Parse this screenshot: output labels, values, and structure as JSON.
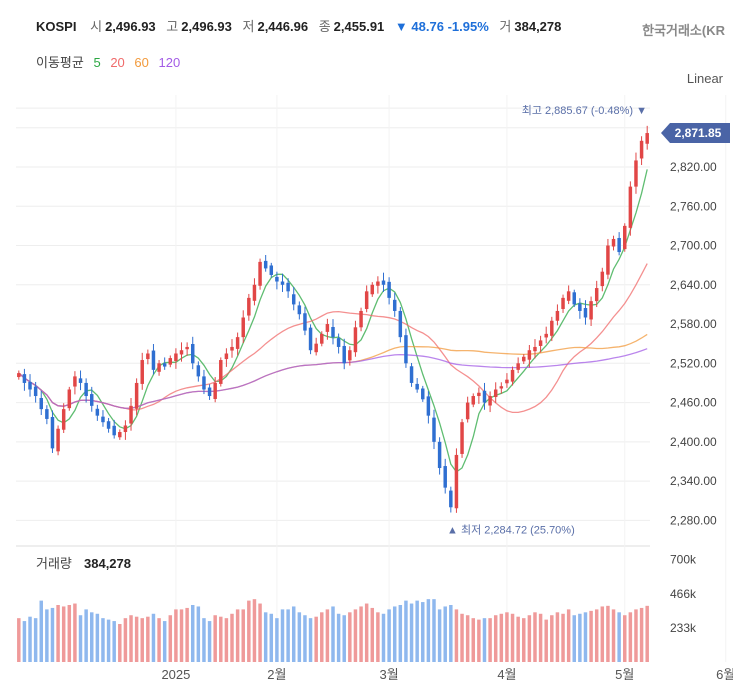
{
  "header": {
    "symbol": "KOSPI",
    "open_label": "시",
    "open_value": "2,496.93",
    "high_label": "고",
    "high_value": "2,496.93",
    "low_label": "저",
    "low_value": "2,446.96",
    "close_label": "종",
    "close_value": "2,455.91",
    "change_arrow": "▼",
    "change_value": "48.76",
    "change_pct": "-1.95%",
    "volume_label": "거",
    "volume_value": "384,278",
    "exchange": "한국거래소(KR",
    "scale_mode": "Linear"
  },
  "moving_average": {
    "label": "이동평균",
    "periods": [
      "5",
      "20",
      "60",
      "120"
    ],
    "colors": [
      "#2aa742",
      "#f06b6b",
      "#f29a3c",
      "#a35ce6"
    ]
  },
  "colors": {
    "up": "#e14646",
    "down": "#2f6fd1",
    "vol_up": "#ef9a9a",
    "vol_down": "#8fb8ee",
    "price_tag": "#4a64a6",
    "grid": "#eeeeee"
  },
  "chart_data": {
    "type": "candlestick",
    "price_axis": {
      "range": [
        2250,
        2930
      ],
      "ticks": [
        "2,280.00",
        "2,340.00",
        "2,400.00",
        "2,460.00",
        "2,520.00",
        "2,580.00",
        "2,640.00",
        "2,700.00",
        "2,760.00",
        "2,820.00"
      ],
      "tick_values": [
        2280,
        2340,
        2400,
        2460,
        2520,
        2580,
        2640,
        2700,
        2760,
        2820
      ]
    },
    "last_price_label": "2,871.85",
    "last_price": 2871.85,
    "max_annotation": "최고 2,885.67 (-0.48%) ▼",
    "max_value": 2885.67,
    "min_annotation": "▲ 최저 2,284.72 (25.70%)",
    "min_value": 2284.72,
    "x_labels": [
      "2025",
      "2월",
      "3월",
      "4월",
      "5월",
      "6월"
    ],
    "x_label_positions": [
      28,
      46,
      66,
      87,
      108,
      126
    ],
    "closes": [
      2505,
      2490,
      2480,
      2470,
      2450,
      2435,
      2390,
      2420,
      2450,
      2480,
      2500,
      2490,
      2470,
      2455,
      2440,
      2430,
      2420,
      2410,
      2415,
      2425,
      2455,
      2490,
      2525,
      2535,
      2510,
      2520,
      2515,
      2528,
      2535,
      2540,
      2545,
      2520,
      2500,
      2480,
      2470,
      2490,
      2525,
      2535,
      2545,
      2560,
      2590,
      2620,
      2640,
      2675,
      2665,
      2655,
      2645,
      2640,
      2630,
      2610,
      2595,
      2570,
      2540,
      2550,
      2565,
      2580,
      2560,
      2545,
      2520,
      2540,
      2575,
      2600,
      2630,
      2640,
      2645,
      2640,
      2620,
      2600,
      2560,
      2520,
      2490,
      2480,
      2465,
      2440,
      2400,
      2360,
      2330,
      2300,
      2380,
      2430,
      2460,
      2470,
      2475,
      2460,
      2470,
      2480,
      2485,
      2495,
      2510,
      2520,
      2530,
      2540,
      2545,
      2555,
      2565,
      2585,
      2600,
      2620,
      2630,
      2610,
      2600,
      2590,
      2615,
      2635,
      2660,
      2700,
      2710,
      2690,
      2730,
      2790,
      2830,
      2860,
      2871.85
    ],
    "volumes": [
      300,
      280,
      310,
      300,
      420,
      360,
      370,
      390,
      380,
      390,
      400,
      320,
      360,
      340,
      330,
      300,
      290,
      280,
      260,
      300,
      320,
      310,
      300,
      310,
      330,
      300,
      280,
      320,
      360,
      360,
      370,
      390,
      380,
      300,
      280,
      320,
      310,
      300,
      330,
      360,
      360,
      420,
      430,
      400,
      340,
      330,
      300,
      360,
      360,
      380,
      340,
      320,
      300,
      310,
      340,
      360,
      380,
      330,
      320,
      340,
      360,
      380,
      400,
      370,
      340,
      330,
      360,
      380,
      390,
      420,
      400,
      420,
      410,
      430,
      430,
      360,
      380,
      390,
      360,
      330,
      320,
      300,
      290,
      300,
      300,
      320,
      330,
      340,
      330,
      310,
      300,
      320,
      340,
      330,
      290,
      320,
      340,
      330,
      360,
      320,
      330,
      340,
      350,
      360,
      380,
      384.278,
      360,
      340,
      320,
      340,
      360,
      370,
      384.278
    ],
    "volume_axis": {
      "range": [
        0,
        780
      ],
      "ticks": [
        "700k",
        "466k",
        "233k"
      ],
      "tick_values": [
        700,
        466,
        233
      ]
    },
    "volume_title": "거래량",
    "volume_value": "384,278"
  }
}
